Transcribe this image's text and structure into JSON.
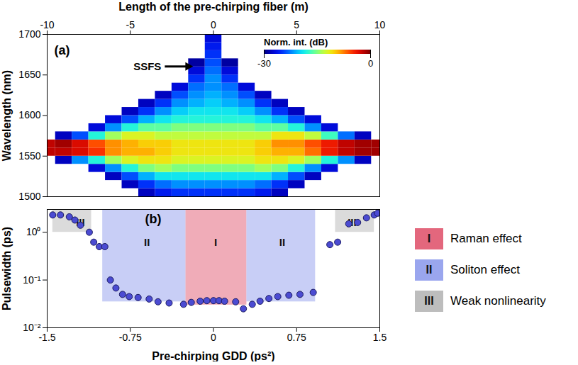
{
  "chart_data": [
    {
      "type": "heatmap",
      "panel": "(a)",
      "x_label": "Length of the pre-chirping fiber (m)",
      "y_label": "Wavelength (nm)",
      "xlim": [
        -10,
        10
      ],
      "xticks": [
        -10,
        -5,
        0,
        5,
        10
      ],
      "ylim": [
        1500,
        1700
      ],
      "yticks": [
        1500,
        1550,
        1600,
        1650,
        1700
      ],
      "x": [
        -10,
        -9,
        -8,
        -7,
        -6,
        -5,
        -4,
        -3,
        -2,
        -1,
        0,
        1,
        2,
        3,
        4,
        5,
        6,
        7,
        8,
        9,
        10
      ],
      "y": [
        1505,
        1515,
        1525,
        1535,
        1545,
        1555,
        1565,
        1575,
        1585,
        1595,
        1605,
        1615,
        1625,
        1635,
        1645,
        1655,
        1665,
        1675,
        1685,
        1695
      ],
      "values": [
        [
          null,
          null,
          null,
          null,
          null,
          -2,
          -2,
          null,
          null,
          null,
          null,
          null,
          null,
          null,
          null,
          null,
          null,
          null,
          null,
          null
        ],
        [
          null,
          null,
          null,
          null,
          -28,
          -2,
          -1,
          -28,
          null,
          null,
          null,
          null,
          null,
          null,
          null,
          null,
          null,
          null,
          null,
          null
        ],
        [
          null,
          null,
          null,
          null,
          -22,
          -3,
          -3,
          -24,
          null,
          null,
          null,
          null,
          null,
          null,
          null,
          null,
          null,
          null,
          null,
          null
        ],
        [
          null,
          null,
          null,
          -27,
          -18,
          -5,
          -6,
          -18,
          -27,
          null,
          null,
          null,
          null,
          null,
          null,
          null,
          null,
          null,
          null,
          null
        ],
        [
          null,
          null,
          -28,
          -22,
          -14,
          -8,
          -8,
          -14,
          -22,
          -27,
          null,
          null,
          null,
          null,
          null,
          null,
          null,
          null,
          null,
          null
        ],
        [
          null,
          -28,
          -24,
          -18,
          -12,
          -9,
          -9,
          -12,
          -18,
          -24,
          -28,
          null,
          null,
          null,
          null,
          null,
          null,
          null,
          null,
          null
        ],
        [
          -28,
          -25,
          -21,
          -15,
          -11,
          -9,
          -10,
          -12,
          -16,
          -21,
          -25,
          -28,
          null,
          null,
          null,
          null,
          null,
          null,
          null,
          null
        ],
        [
          -26,
          -23,
          -19,
          -14,
          -11,
          -10,
          -10,
          -13,
          -16,
          -19,
          -22,
          -25,
          -28,
          null,
          null,
          null,
          null,
          null,
          null,
          null
        ],
        [
          -25,
          -22,
          -19,
          -15,
          -12,
          -11,
          -11,
          -13,
          -15,
          -18,
          -20,
          -22,
          -24,
          -27,
          null,
          null,
          null,
          null,
          null,
          null
        ],
        [
          -25,
          -22,
          -19,
          -15,
          -12,
          -11,
          -11,
          -13,
          -15,
          -18,
          -19,
          -21,
          -22,
          -23,
          -25,
          -27,
          -29,
          null,
          null,
          null
        ],
        [
          -25,
          -22,
          -19,
          -15,
          -12,
          -11,
          -11,
          -13,
          -15,
          -18,
          -19,
          -20,
          -21,
          -22,
          -22,
          -23,
          -24,
          -25,
          -26,
          -27
        ],
        [
          -25,
          -22,
          -19,
          -15,
          -12,
          -11,
          -11,
          -13,
          -15,
          -18,
          -19,
          -21,
          -22,
          -23,
          -25,
          -27,
          -29,
          null,
          null,
          null
        ],
        [
          -25,
          -22,
          -19,
          -15,
          -12,
          -11,
          -11,
          -13,
          -15,
          -18,
          -20,
          -22,
          -24,
          -27,
          null,
          null,
          null,
          null,
          null,
          null
        ],
        [
          -26,
          -23,
          -19,
          -14,
          -11,
          -10,
          -10,
          -13,
          -16,
          -19,
          -22,
          -25,
          -28,
          null,
          null,
          null,
          null,
          null,
          null,
          null
        ],
        [
          -28,
          -25,
          -21,
          -15,
          -11,
          -9,
          -8,
          -11,
          -16,
          -21,
          -25,
          -28,
          null,
          null,
          null,
          null,
          null,
          null,
          null,
          null
        ],
        [
          null,
          -28,
          -24,
          -18,
          -12,
          -9,
          -8,
          -11,
          -18,
          -24,
          -28,
          null,
          null,
          null,
          null,
          null,
          null,
          null,
          null,
          null
        ],
        [
          null,
          null,
          -28,
          -22,
          -14,
          -7,
          -6,
          -13,
          -22,
          -27,
          null,
          null,
          null,
          null,
          null,
          null,
          null,
          null,
          null,
          null
        ],
        [
          null,
          null,
          null,
          -27,
          -18,
          -4,
          -4,
          -17,
          -27,
          null,
          null,
          null,
          null,
          null,
          null,
          null,
          null,
          null,
          null,
          null
        ],
        [
          null,
          null,
          null,
          null,
          -22,
          -2,
          -2,
          -23,
          null,
          null,
          null,
          null,
          null,
          null,
          null,
          null,
          null,
          null,
          null,
          null
        ],
        [
          null,
          null,
          null,
          null,
          -28,
          -1,
          -1,
          -28,
          null,
          null,
          null,
          null,
          null,
          null,
          null,
          null,
          null,
          null,
          null,
          null
        ],
        [
          null,
          null,
          null,
          null,
          null,
          -1,
          -1,
          null,
          null,
          null,
          null,
          null,
          null,
          null,
          null,
          null,
          null,
          null,
          null,
          null
        ]
      ],
      "colorbar": {
        "range": [
          -30,
          0
        ],
        "ticks": [
          -30,
          0
        ],
        "label": "Norm. int. (dB)"
      },
      "annotations": [
        {
          "text": "SSFS",
          "x": -1.2,
          "y": 1660
        }
      ]
    },
    {
      "type": "scatter",
      "panel": "(b)",
      "x_label": "Pre-chirping GDD (ps²)",
      "y_label": "Pulsewidth (ps)",
      "log": "y",
      "xlim": [
        -1.5,
        1.5
      ],
      "xticks": [
        -1.5,
        -0.75,
        0,
        0.75,
        1.5
      ],
      "ylim": [
        0.01,
        3
      ],
      "yticks": [
        {
          "value": 0.01,
          "label": "10⁻²"
        },
        {
          "value": 0.1,
          "label": "10⁻¹"
        },
        {
          "value": 1,
          "label": "10⁰"
        }
      ],
      "x": [
        -1.45,
        -1.38,
        -1.3,
        -1.25,
        -1.2,
        -1.12,
        -1.08,
        -1.03,
        -0.98,
        -0.93,
        -0.88,
        -0.82,
        -0.76,
        -0.68,
        -0.58,
        -0.5,
        -0.4,
        -0.27,
        -0.2,
        -0.12,
        -0.06,
        0,
        0.05,
        0.1,
        0.2,
        0.27,
        0.35,
        0.42,
        0.5,
        0.58,
        0.68,
        0.78,
        0.9,
        1.05,
        1.12,
        1.22,
        1.3,
        1.38,
        1.45,
        1.48
      ],
      "values": [
        2.3,
        2.3,
        2.1,
        1.8,
        1.4,
        1.0,
        0.62,
        0.5,
        0.5,
        0.1,
        0.068,
        0.05,
        0.045,
        0.043,
        0.04,
        0.035,
        0.033,
        0.031,
        0.034,
        0.036,
        0.037,
        0.037,
        0.037,
        0.036,
        0.035,
        0.025,
        0.031,
        0.036,
        0.041,
        0.045,
        0.048,
        0.05,
        0.055,
        0.55,
        0.62,
        1.5,
        1.6,
        2.0,
        2.3,
        2.5
      ],
      "color": "#4b4bd2",
      "marker": "circle",
      "legend": "right",
      "regions": [
        {
          "name": "I",
          "label": "Raman effect",
          "color": "#e3677d",
          "x": [
            [
              -0.25,
              0.3
            ]
          ],
          "y": [
            0.03,
            3
          ],
          "label_at": [
            [
              0.02,
              0.6
            ]
          ]
        },
        {
          "name": "II",
          "label": "Soliton effect",
          "color": "#9aa6ee",
          "x": [
            [
              -1.0,
              -0.25
            ],
            [
              0.3,
              0.92
            ]
          ],
          "y": [
            0.035,
            3
          ],
          "label_at": [
            [
              -0.6,
              0.6
            ],
            [
              0.62,
              0.6
            ]
          ]
        },
        {
          "name": "III",
          "label": "Weak nonlinearity",
          "color": "#bdbdbd",
          "x": [
            [
              -1.45,
              -1.1
            ],
            [
              1.1,
              1.45
            ]
          ],
          "y": [
            1,
            3
          ],
          "label_at": [
            [
              -1.2,
              1.6
            ],
            [
              1.25,
              1.6
            ]
          ]
        }
      ]
    }
  ]
}
